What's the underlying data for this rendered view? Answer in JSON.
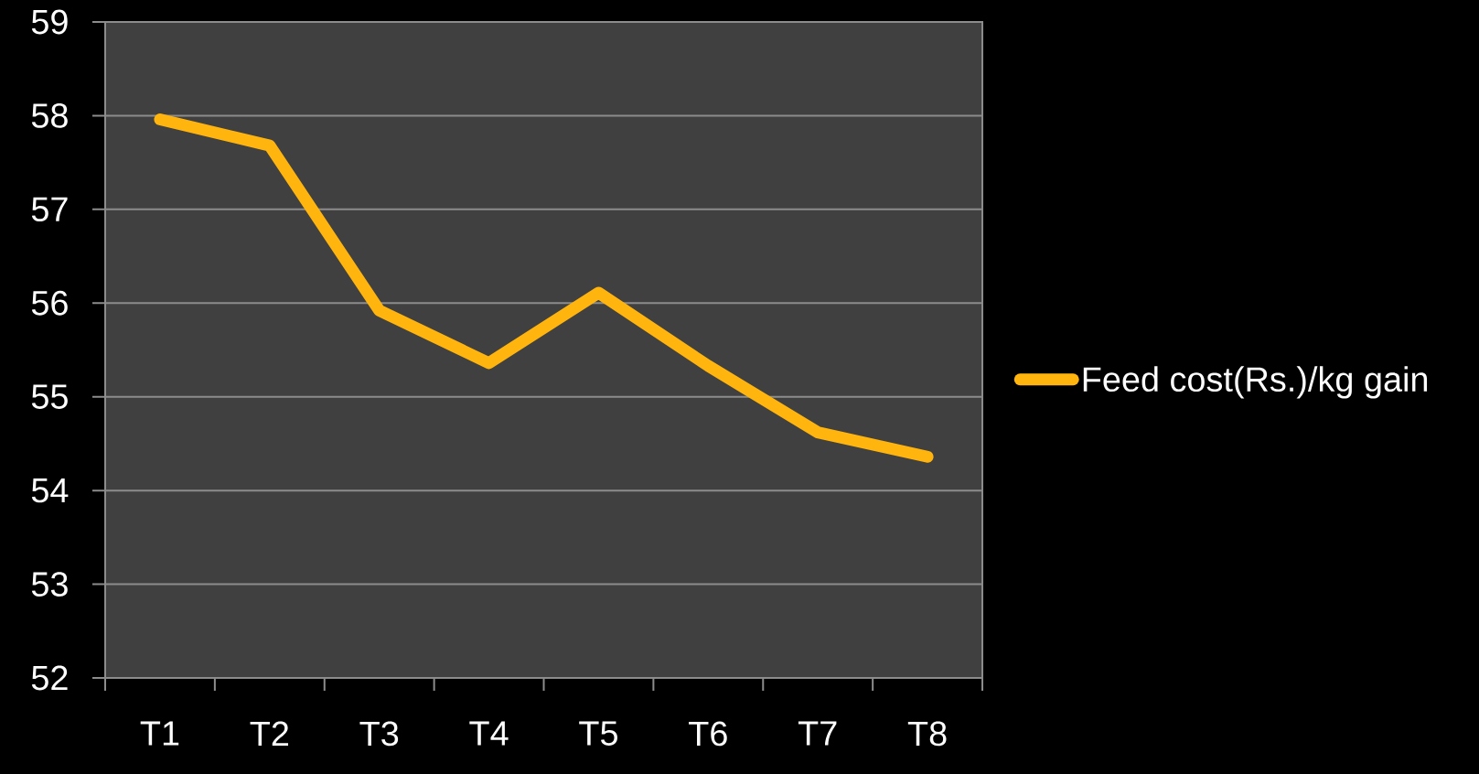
{
  "chart_data": {
    "type": "line",
    "categories": [
      "T1",
      "T2",
      "T3",
      "T4",
      "T5",
      "T6",
      "T7",
      "T8"
    ],
    "series": [
      {
        "name": "Feed cost(Rs.)/kg gain",
        "color": "#ffb50d",
        "values": [
          57.96,
          57.68,
          55.92,
          55.36,
          56.11,
          55.33,
          54.62,
          54.36
        ]
      }
    ],
    "ylim": [
      52,
      59
    ],
    "yticks": [
      52,
      53,
      54,
      55,
      56,
      57,
      58,
      59
    ],
    "grid": "y",
    "legend": "right",
    "line_style": "solid"
  }
}
